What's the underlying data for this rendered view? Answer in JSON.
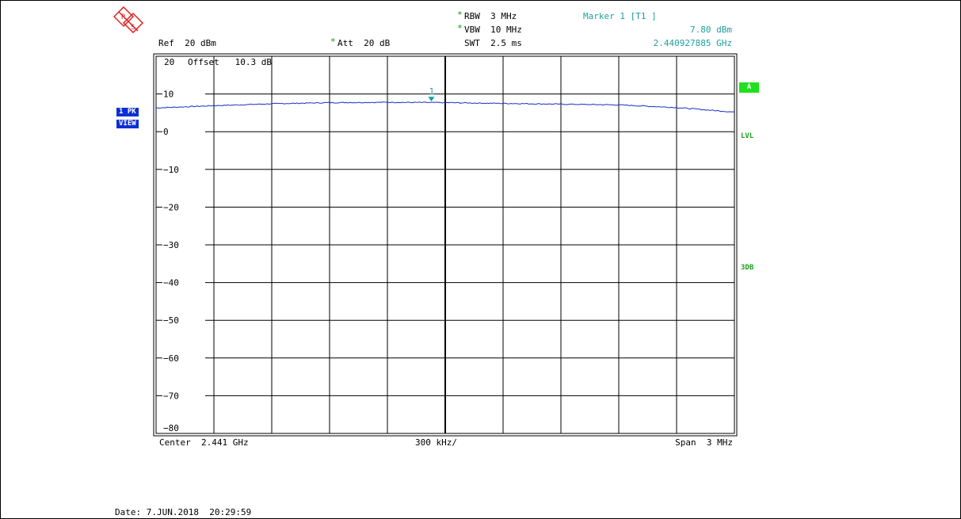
{
  "logo": {
    "letters": [
      "R",
      "S"
    ]
  },
  "header": {
    "ref": "Ref  20 dBm",
    "att_star": "*",
    "att": "Att  20 dB",
    "rbw_star": "*",
    "rbw": "RBW  3 MHz",
    "vbw_star": "*",
    "vbw": "VBW  10 MHz",
    "swt": "SWT  2.5 ms",
    "marker_title": "Marker 1 [T1 ]",
    "marker_level": "7.80 dBm",
    "marker_freq": "2.440927885 GHz"
  },
  "plot": {
    "ref_label": "20",
    "offset_label": "Offset   10.3 dB",
    "marker_number": "1"
  },
  "side": {
    "badge_top": "1 PK",
    "badge_bottom": "VIEW",
    "a_label": "A",
    "lvl_label": "LVL",
    "db3_label": "3DB"
  },
  "footer": {
    "center": "Center  2.441 GHz",
    "per_div": "300 kHz/",
    "span": "Span  3 MHz",
    "date": "Date: 7.JUN.2018  20:29:59"
  },
  "colors": {
    "trace": "#1a2fc8",
    "marker": "#1e9e9e",
    "grid": "#000000"
  },
  "chart_data": {
    "type": "line",
    "xlabel": "",
    "ylabel": "",
    "xlim": [
      2.4395,
      2.4425
    ],
    "ylim": [
      -80,
      20
    ],
    "yticks": [
      10,
      0,
      -10,
      -20,
      -30,
      -40,
      -50,
      -60,
      -70,
      -80
    ],
    "grid": true,
    "series": [
      {
        "x": [
          2.4395,
          2.4398,
          2.4401,
          2.4404,
          2.4407,
          2.441,
          2.4413,
          2.4416,
          2.4419,
          2.4422,
          2.4425
        ],
        "values": [
          6.3,
          6.9,
          7.4,
          7.7,
          7.8,
          7.7,
          7.5,
          7.3,
          7.1,
          6.4,
          5.2
        ]
      }
    ],
    "marker": {
      "x": 2.440927885,
      "y": 7.8
    }
  }
}
